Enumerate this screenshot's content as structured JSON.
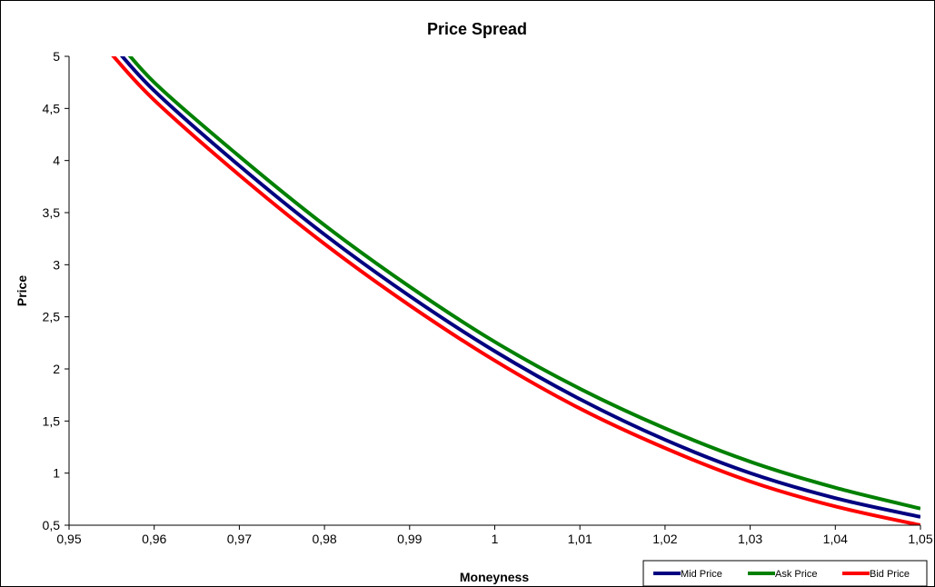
{
  "chart_data": {
    "type": "line",
    "title": "Price Spread",
    "xlabel": "Moneyness",
    "ylabel": "Price",
    "xlim": [
      0.95,
      1.05
    ],
    "ylim": [
      0.5,
      5
    ],
    "x_ticks": [
      "0,95",
      "0,96",
      "0,97",
      "0,98",
      "0,99",
      "1",
      "1,01",
      "1,02",
      "1,03",
      "1,04",
      "1,05"
    ],
    "y_ticks": [
      "0,5",
      "1",
      "1,5",
      "2",
      "2,5",
      "3",
      "3,5",
      "4",
      "4,5",
      "5"
    ],
    "grid": false,
    "legend_position": "bottom-right",
    "x": [
      0.955,
      0.96,
      0.97,
      0.98,
      0.99,
      1.0,
      1.01,
      1.02,
      1.03,
      1.04,
      1.05
    ],
    "series": [
      {
        "name": "Mid Price",
        "color": "#000080",
        "values": [
          5.12,
          4.67,
          3.95,
          3.29,
          2.7,
          2.17,
          1.71,
          1.32,
          1.0,
          0.76,
          0.58
        ]
      },
      {
        "name": "Ask Price",
        "color": "#008000",
        "values": [
          5.22,
          4.75,
          4.04,
          3.38,
          2.79,
          2.26,
          1.81,
          1.43,
          1.11,
          0.86,
          0.66
        ]
      },
      {
        "name": "Bid Price",
        "color": "#ff0000",
        "values": [
          5.02,
          4.58,
          3.86,
          3.2,
          2.61,
          2.08,
          1.62,
          1.24,
          0.92,
          0.68,
          0.5
        ]
      }
    ]
  }
}
